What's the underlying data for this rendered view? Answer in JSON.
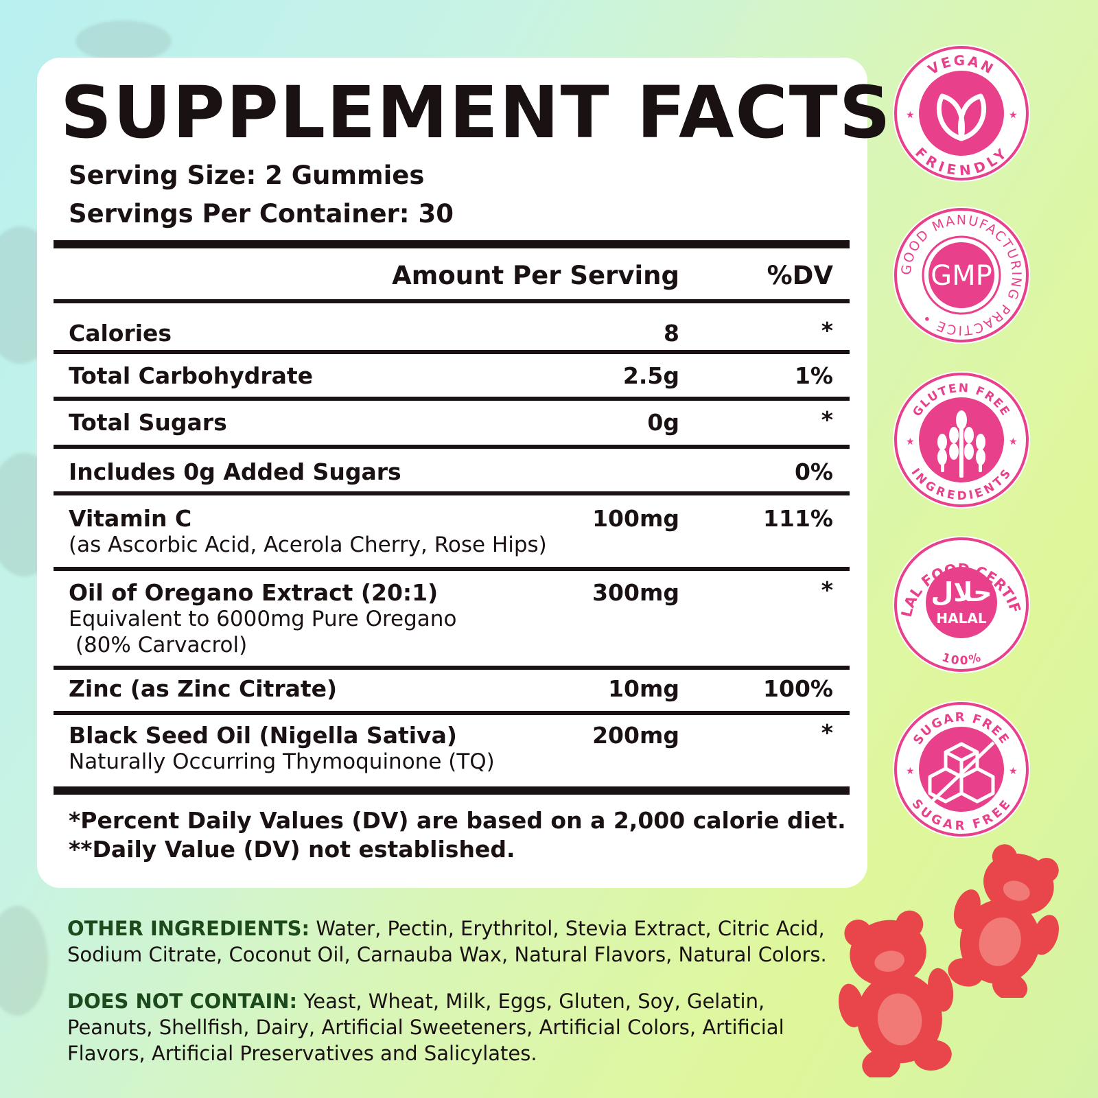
{
  "title": "SUPPLEMENT FACTS",
  "serving_size": "Serving Size: 2 Gummies",
  "servings_per_container": "Servings Per Container: 30",
  "header": {
    "amount": "Amount Per Serving",
    "dv": "%DV"
  },
  "rows": [
    {
      "name": "Calories",
      "sub": [],
      "amount": "8",
      "dv": "*"
    },
    {
      "name": "Total Carbohydrate",
      "sub": [],
      "amount": "2.5g",
      "dv": "1%"
    },
    {
      "name": "Total Sugars",
      "sub": [],
      "amount": "0g",
      "dv": "*"
    },
    {
      "name": "Includes 0g Added Sugars",
      "sub": [],
      "amount": "",
      "dv": "0%"
    },
    {
      "name": "Vitamin C",
      "sub": [
        "(as Ascorbic Acid, Acerola Cherry, Rose Hips)"
      ],
      "amount": "100mg",
      "dv": "111%"
    },
    {
      "name": "Oil of Oregano Extract (20:1)",
      "sub": [
        "Equivalent to 6000mg Pure Oregano",
        " (80% Carvacrol)"
      ],
      "amount": "300mg",
      "dv": "*"
    },
    {
      "name": "Zinc (as Zinc Citrate)",
      "sub": [],
      "amount": "10mg",
      "dv": "100%"
    },
    {
      "name": "Black Seed Oil (Nigella Sativa)",
      "sub": [
        "Naturally Occurring Thymoquinone (TQ)"
      ],
      "amount": "200mg",
      "dv": "*"
    }
  ],
  "footnotes": [
    "*Percent Daily Values (DV) are based on a 2,000 calorie diet.",
    "**Daily Value (DV) not established."
  ],
  "other_ingredients": {
    "label": "OTHER INGREDIENTS:",
    "text": " Water, Pectin, Erythritol, Stevia Extract, Citric Acid, Sodium Citrate, Coconut Oil, Carnauba Wax, Natural Flavors, Natural Colors."
  },
  "does_not_contain": {
    "label": "DOES NOT CONTAIN:",
    "text": " Yeast, Wheat, Milk, Eggs, Gluten, Soy, Gelatin, Peanuts, Shellfish, Dairy, Artificial Sweeteners, Artificial Colors, Artificial Flavors, Artificial Preservatives and Salicylates."
  },
  "badges": {
    "vegan": {
      "top": "VEGAN",
      "bottom": "FRIENDLY"
    },
    "gmp": {
      "center": "GMP",
      "ring": "GOOD MANUFACTURING PRACTICE •"
    },
    "gluten": {
      "top": "GLUTEN FREE",
      "bottom": "INGREDIENTS"
    },
    "halal": {
      "ring": "HALAL FOOD CERTIFIED",
      "arabic": "حلال",
      "label": "HALAL",
      "percent": "100%"
    },
    "sugar": {
      "top": "SUGAR FREE",
      "bottom": "SUGAR FREE"
    }
  },
  "colors": {
    "accent": "#e8408a",
    "ink": "#1a1212",
    "dark_green": "#1c4a1c",
    "bear": "#e8464a"
  }
}
